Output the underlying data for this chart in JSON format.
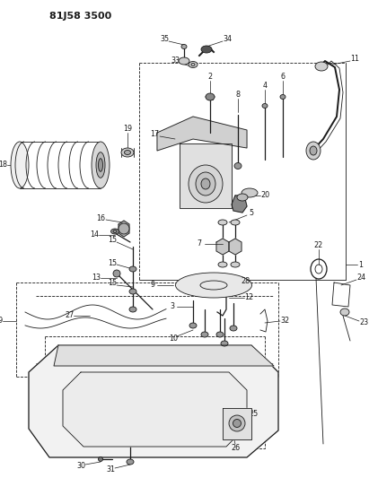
{
  "title": "81J58 3500",
  "bg_color": "#ffffff",
  "line_color": "#1a1a1a",
  "fig_width": 4.11,
  "fig_height": 5.33,
  "dpi": 100
}
